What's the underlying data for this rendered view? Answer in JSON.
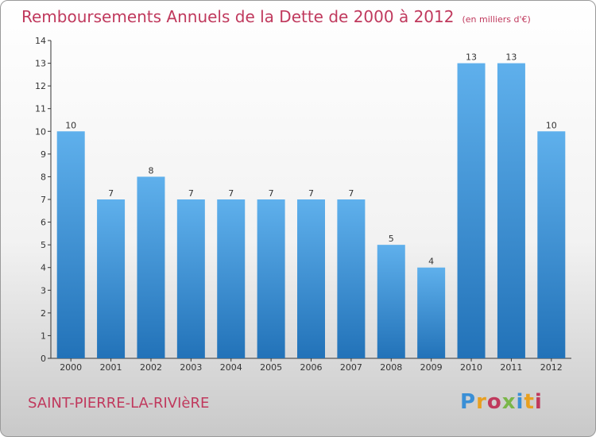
{
  "header": {
    "title": "Remboursements Annuels de la Dette de 2000 à 2012",
    "unit": "(en milliers d'€)"
  },
  "footer": {
    "commune": "SAINT-PIERRE-LA-RIVIèRE",
    "logo_letters": [
      "P",
      "r",
      "o",
      "x",
      "i",
      "t",
      "i"
    ],
    "logo_colors": [
      "#3a8fd6",
      "#e8a020",
      "#c0395d",
      "#7ab648",
      "#3a8fd6",
      "#e8a020",
      "#c0395d"
    ]
  },
  "chart_data": {
    "type": "bar",
    "categories": [
      "2000",
      "2001",
      "2002",
      "2003",
      "2004",
      "2005",
      "2006",
      "2007",
      "2008",
      "2009",
      "2010",
      "2011",
      "2012"
    ],
    "values": [
      10,
      7,
      8,
      7,
      7,
      7,
      7,
      7,
      5,
      4,
      13,
      13,
      10
    ],
    "data_labels": [
      "10",
      "7",
      "8",
      "7",
      "7",
      "7",
      "7",
      "7",
      "5",
      "4",
      "13",
      "13",
      "10"
    ],
    "yticks": [
      "0",
      "1",
      "2",
      "3",
      "4",
      "5",
      "6",
      "7",
      "8",
      "9",
      "10",
      "11",
      "12",
      "13",
      "14"
    ],
    "ylim": [
      0,
      14
    ],
    "title": "Remboursements Annuels de la Dette de 2000 à 2012",
    "xlabel": "",
    "ylabel": "",
    "bar_color": "#3a8fd6",
    "grid": false,
    "legend": "none"
  }
}
